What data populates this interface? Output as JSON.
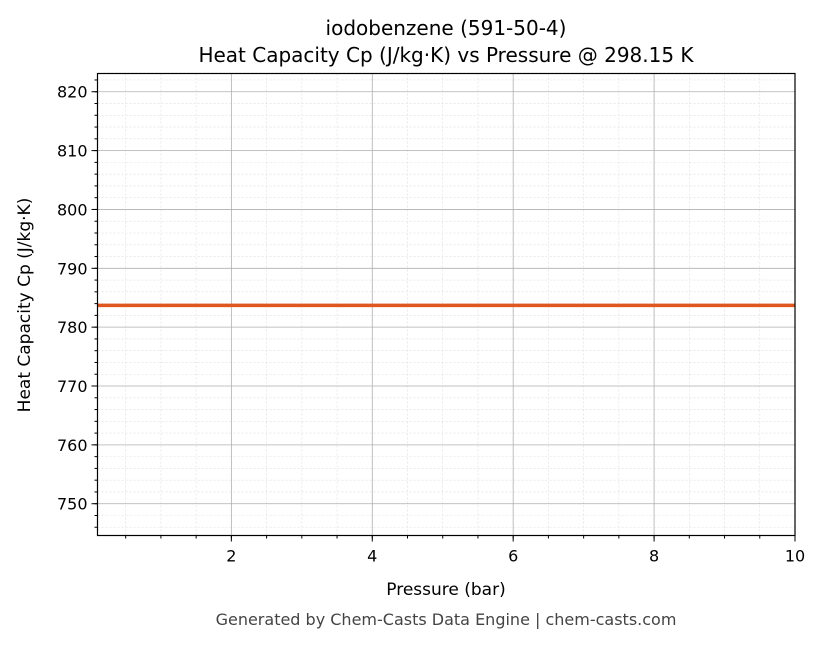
{
  "chart_data": {
    "type": "line",
    "title": "iodobenzene (591-50-4)",
    "subtitle": "Heat Capacity Cp (J/kg·K) vs Pressure @ 298.15 K",
    "xlabel": "Pressure (bar)",
    "ylabel": "Heat Capacity Cp (J/kg·K)",
    "xlim": [
      0.1,
      10
    ],
    "ylim": [
      744.6,
      823.1
    ],
    "xticks": [
      2,
      4,
      6,
      8,
      10
    ],
    "yticks": [
      750,
      760,
      770,
      780,
      790,
      800,
      810,
      820
    ],
    "grid": true,
    "series": [
      {
        "x": [
          0.1,
          10
        ],
        "y": [
          783.7,
          783.7
        ],
        "color": "#e0561f"
      }
    ]
  },
  "footer": "Generated by Chem-Casts Data Engine | chem-casts.com"
}
